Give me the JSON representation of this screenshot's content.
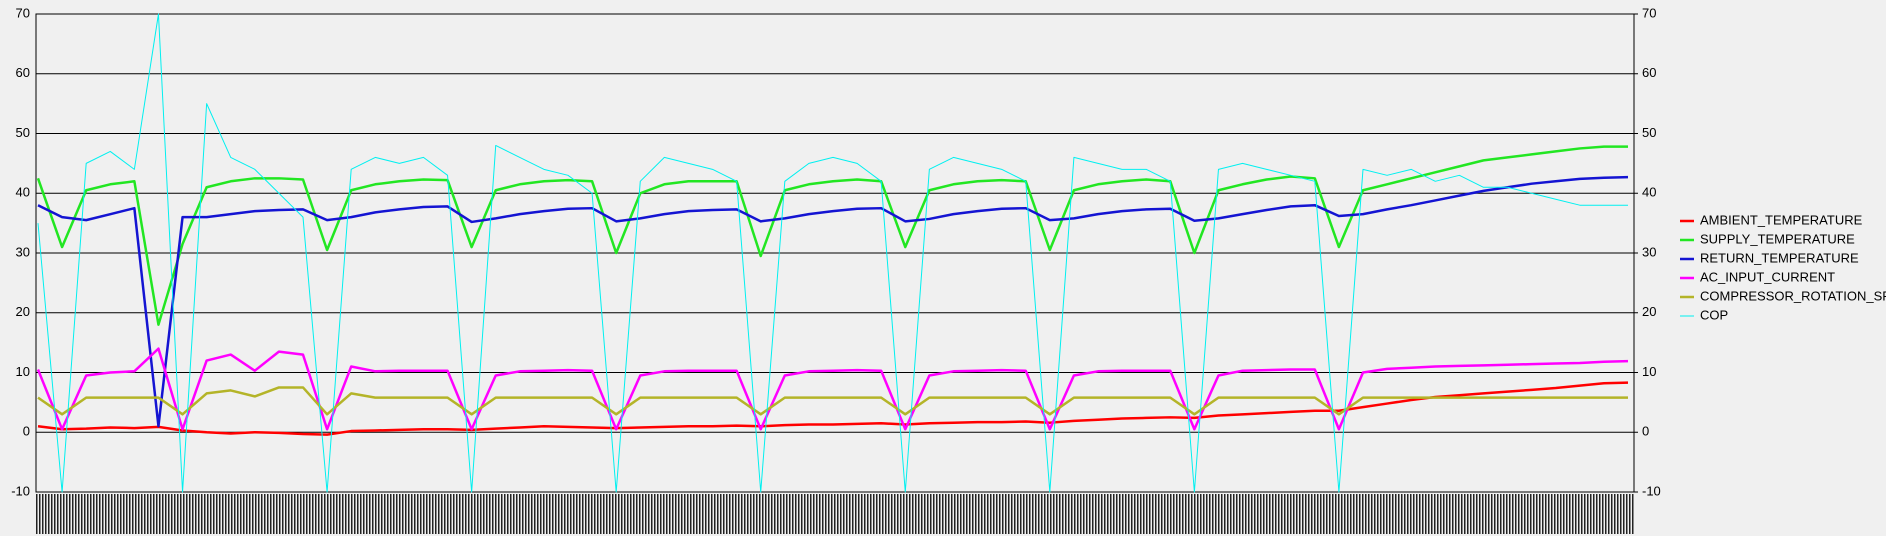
{
  "chart_data": {
    "type": "line",
    "categories": [
      null,
      null,
      null,
      null,
      null,
      null,
      null,
      null,
      null,
      null,
      null,
      null,
      null,
      null,
      null,
      null,
      null,
      null,
      null,
      null,
      null,
      null,
      null,
      null,
      null,
      null,
      null,
      null,
      null,
      null,
      null,
      null,
      null,
      null,
      null,
      null,
      null,
      null,
      null,
      null,
      null,
      null,
      null,
      null,
      null,
      null,
      null,
      null,
      null,
      null,
      null,
      null,
      null,
      null,
      null,
      null,
      null,
      null,
      null,
      null,
      null,
      null,
      null,
      null,
      null,
      null,
      null
    ],
    "series": [
      {
        "name": "AMBIENT_TEMPERATURE",
        "color": "#ff0000",
        "values": [
          1,
          0.5,
          0.6,
          0.8,
          0.7,
          0.9,
          0.3,
          0,
          -0.2,
          0,
          -0.1,
          -0.3,
          -0.4,
          0.2,
          0.3,
          0.4,
          0.5,
          0.5,
          0.4,
          0.6,
          0.8,
          1,
          0.9,
          0.8,
          0.7,
          0.8,
          0.9,
          1,
          1,
          1.1,
          1,
          1.2,
          1.3,
          1.3,
          1.4,
          1.5,
          1.3,
          1.5,
          1.6,
          1.7,
          1.7,
          1.8,
          1.6,
          1.9,
          2.1,
          2.3,
          2.4,
          2.5,
          2.4,
          2.8,
          3,
          3.2,
          3.4,
          3.6,
          3.6,
          4.2,
          4.8,
          5.4,
          5.9,
          6.2,
          6.5,
          6.8,
          7.1,
          7.4,
          7.8,
          8.2,
          8.3
        ]
      },
      {
        "name": "SUPPLY_TEMPERATURE",
        "color": "#22e622",
        "values": [
          42.5,
          31,
          40.5,
          41.5,
          42,
          18,
          31.5,
          41,
          42,
          42.5,
          42.5,
          42.3,
          30.5,
          40.5,
          41.5,
          42,
          42.3,
          42.2,
          31,
          40.5,
          41.5,
          42,
          42.2,
          42,
          30,
          40,
          41.5,
          42,
          42,
          42,
          29.5,
          40.5,
          41.5,
          42,
          42.3,
          42,
          31,
          40.5,
          41.5,
          42,
          42.2,
          42,
          30.5,
          40.5,
          41.5,
          42,
          42.3,
          42,
          30,
          40.5,
          41.5,
          42.3,
          42.8,
          42.5,
          31,
          40.5,
          41.5,
          42.5,
          43.5,
          44.5,
          45.5,
          46,
          46.5,
          47,
          47.5,
          47.8,
          47.8
        ]
      },
      {
        "name": "RETURN_TEMPERATURE",
        "color": "#1414d2",
        "values": [
          38,
          36,
          35.5,
          36.5,
          37.5,
          1,
          36,
          36,
          36.5,
          37,
          37.2,
          37.3,
          35.5,
          36,
          36.8,
          37.3,
          37.7,
          37.8,
          35.2,
          35.8,
          36.5,
          37,
          37.4,
          37.5,
          35.3,
          35.8,
          36.5,
          37,
          37.2,
          37.3,
          35.3,
          35.8,
          36.5,
          37,
          37.4,
          37.5,
          35.3,
          35.7,
          36.5,
          37,
          37.4,
          37.5,
          35.5,
          35.8,
          36.5,
          37,
          37.3,
          37.4,
          35.4,
          35.8,
          36.5,
          37.2,
          37.8,
          38,
          36.2,
          36.5,
          37.3,
          38,
          38.8,
          39.6,
          40.4,
          41,
          41.6,
          42,
          42.4,
          42.6,
          42.7
        ]
      },
      {
        "name": "AC_INPUT_CURRENT",
        "color": "#ff00ff",
        "values": [
          10.5,
          0.5,
          9.5,
          10,
          10.2,
          14,
          0.5,
          12,
          13,
          10.3,
          13.5,
          13,
          0.5,
          11,
          10.2,
          10.3,
          10.3,
          10.3,
          0.5,
          9.5,
          10.2,
          10.3,
          10.4,
          10.3,
          0.5,
          9.5,
          10.2,
          10.3,
          10.3,
          10.3,
          0.5,
          9.5,
          10.2,
          10.3,
          10.4,
          10.3,
          0.5,
          9.5,
          10.2,
          10.3,
          10.4,
          10.3,
          0.5,
          9.5,
          10.2,
          10.3,
          10.3,
          10.3,
          0.5,
          9.5,
          10.3,
          10.4,
          10.5,
          10.5,
          0.5,
          10,
          10.6,
          10.8,
          11,
          11.1,
          11.2,
          11.3,
          11.4,
          11.5,
          11.6,
          11.8,
          11.9
        ]
      },
      {
        "name": "COMPRESSOR_ROTATION_SPEED",
        "color": "#b4b428",
        "values": [
          5.8,
          3,
          5.8,
          5.8,
          5.8,
          5.8,
          3,
          6.5,
          7,
          6,
          7.5,
          7.5,
          3,
          6.5,
          5.8,
          5.8,
          5.8,
          5.8,
          3,
          5.8,
          5.8,
          5.8,
          5.8,
          5.8,
          3,
          5.8,
          5.8,
          5.8,
          5.8,
          5.8,
          3,
          5.8,
          5.8,
          5.8,
          5.8,
          5.8,
          3,
          5.8,
          5.8,
          5.8,
          5.8,
          5.8,
          3,
          5.8,
          5.8,
          5.8,
          5.8,
          5.8,
          3,
          5.8,
          5.8,
          5.8,
          5.8,
          5.8,
          3,
          5.8,
          5.8,
          5.8,
          5.8,
          5.8,
          5.8,
          5.8,
          5.8,
          5.8,
          5.8,
          5.8,
          5.8
        ]
      },
      {
        "name": "COP",
        "color": "#00f0f0",
        "values": [
          35,
          -10,
          45,
          47,
          44,
          70,
          -10,
          55,
          46,
          44,
          40,
          36,
          -10,
          44,
          46,
          45,
          46,
          43,
          -10,
          48,
          46,
          44,
          43,
          40,
          -10,
          42,
          46,
          45,
          44,
          42,
          -10,
          42,
          45,
          46,
          45,
          42,
          -10,
          44,
          46,
          45,
          44,
          42,
          -10,
          46,
          45,
          44,
          44,
          42,
          -10,
          44,
          45,
          44,
          43,
          42,
          -10,
          44,
          43,
          44,
          42,
          43,
          41,
          41,
          40,
          39,
          38,
          38,
          38
        ]
      }
    ],
    "ylim": [
      -10,
      70
    ],
    "yticks": [
      -10,
      0,
      10,
      20,
      30,
      40,
      50,
      60,
      70
    ],
    "y2lim": [
      -10,
      70
    ],
    "y2ticks": [
      -10,
      0,
      10,
      20,
      30,
      40,
      50,
      60,
      70
    ],
    "grid": true,
    "legend_position": "right"
  }
}
